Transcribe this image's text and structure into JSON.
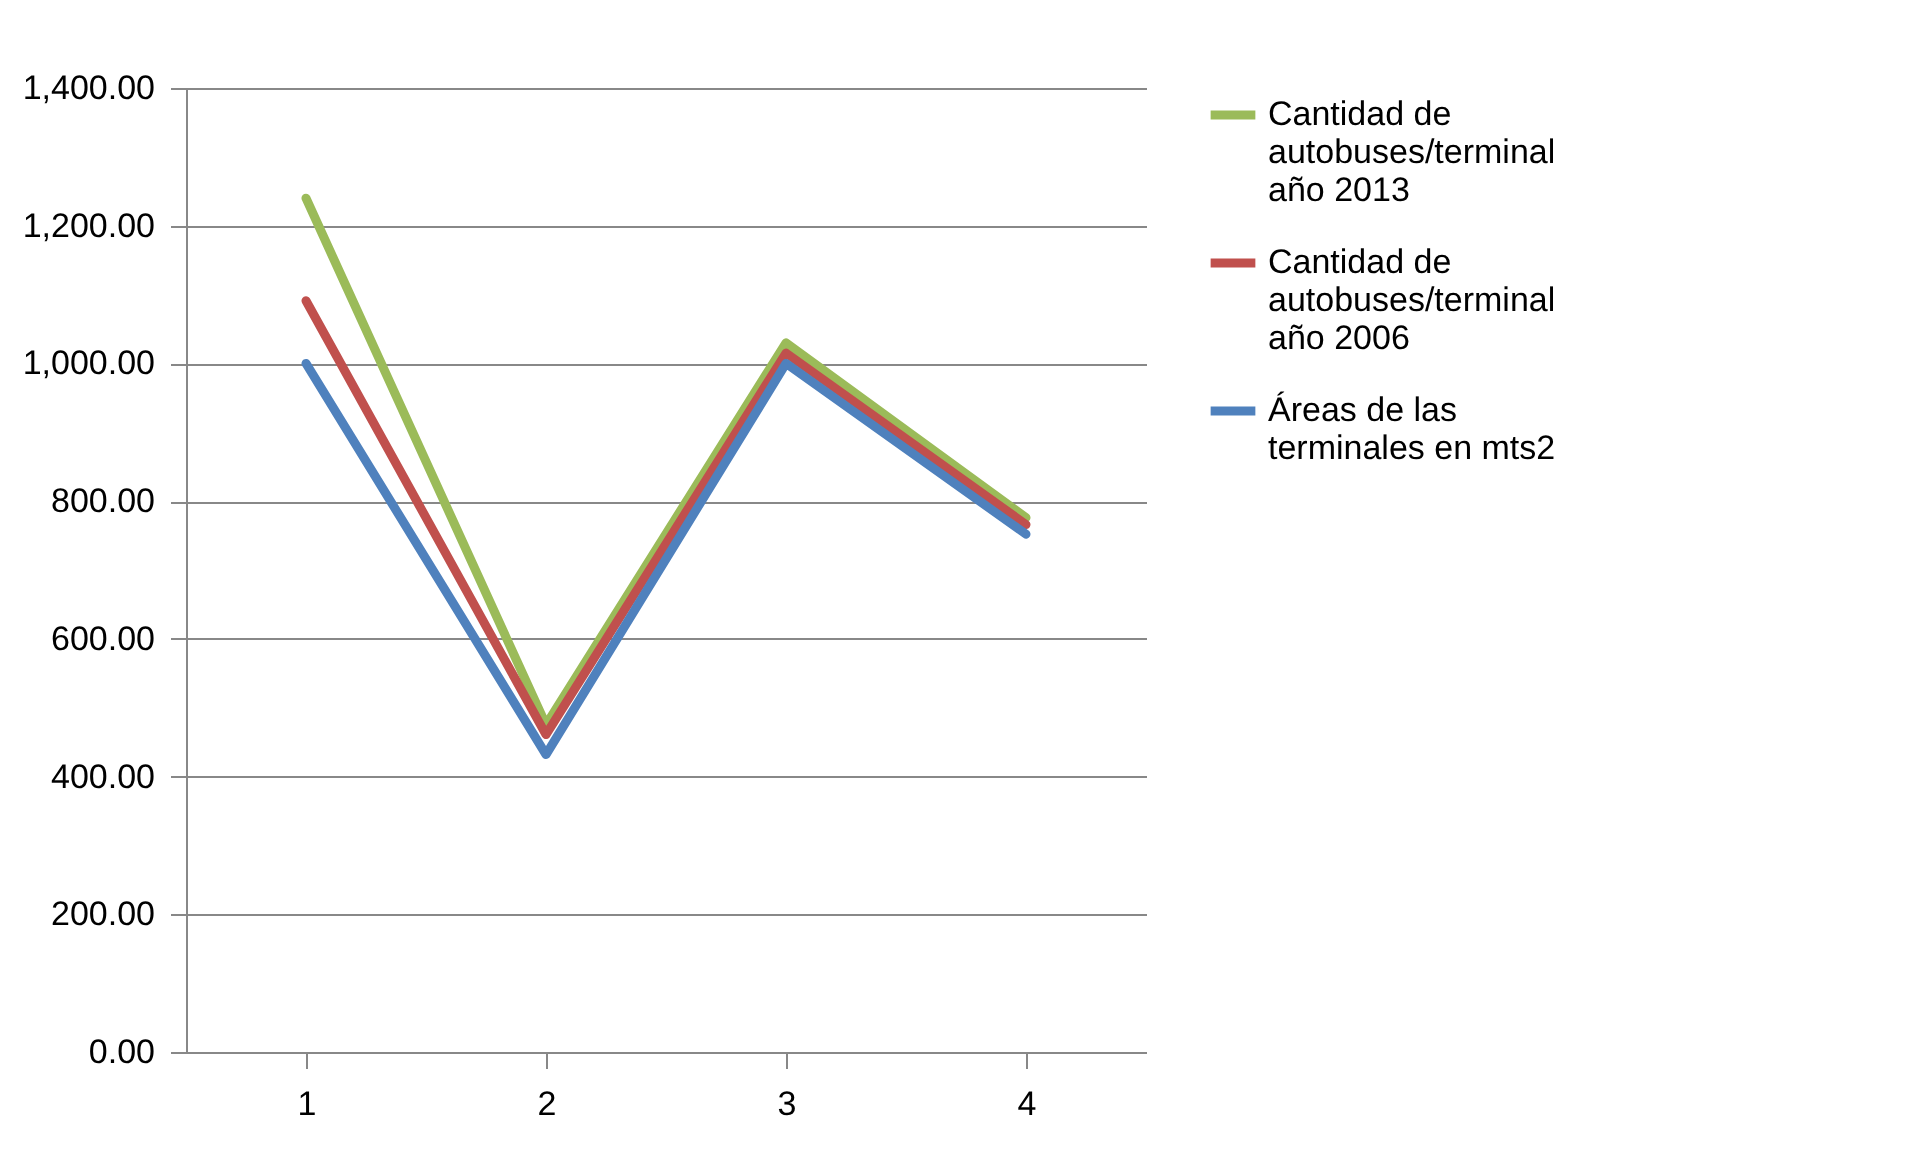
{
  "chart_data": {
    "type": "line",
    "categories": [
      "1",
      "2",
      "3",
      "4"
    ],
    "series": [
      {
        "name": "Cantidad de autobuses/terminal año 2013",
        "color": "#9bbb59",
        "values": [
          1240,
          475,
          1030,
          776
        ]
      },
      {
        "name": "Cantidad de autobuses/terminal año 2006",
        "color": "#c0504d",
        "values": [
          1091,
          461,
          1015,
          766
        ]
      },
      {
        "name": "Áreas  de las terminales en mts2",
        "color": "#4f81bd",
        "values": [
          1000,
          432,
          1000,
          752
        ]
      }
    ],
    "ylim": [
      0,
      1400
    ],
    "yticks": [
      {
        "value": 0,
        "label": "0.00"
      },
      {
        "value": 200,
        "label": "200.00"
      },
      {
        "value": 400,
        "label": "400.00"
      },
      {
        "value": 600,
        "label": "600.00"
      },
      {
        "value": 800,
        "label": "800.00"
      },
      {
        "value": 1000,
        "label": "1,000.00"
      },
      {
        "value": 1200,
        "label": "1,200.00"
      },
      {
        "value": 1400,
        "label": "1,400.00"
      }
    ],
    "grid": "y",
    "legend": "right",
    "marker": "none",
    "line_style": "solid"
  }
}
